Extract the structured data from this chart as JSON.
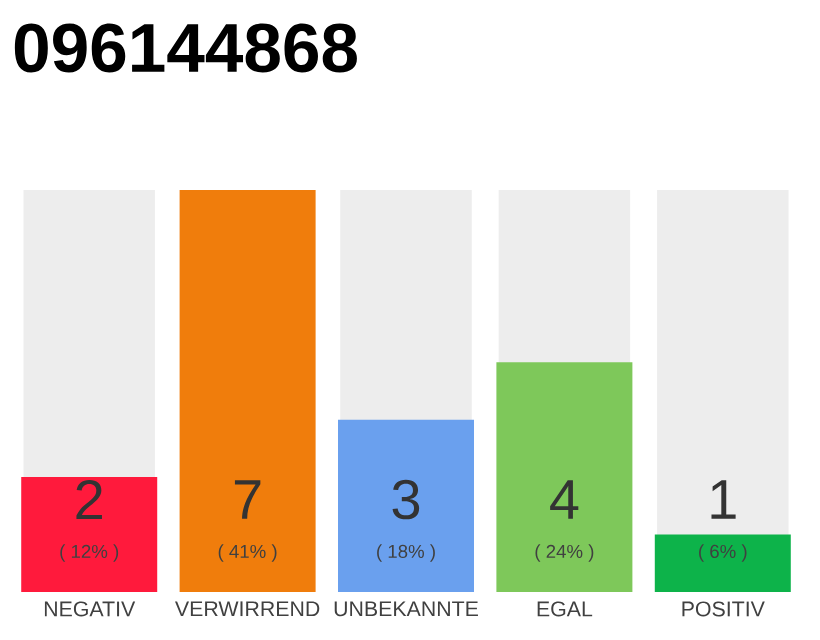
{
  "chart_data": {
    "type": "bar",
    "title": "096144868",
    "categories": [
      "NEGATIV",
      "VERWIRREND",
      "UNBEKANNTE",
      "EGAL",
      "POSITIV"
    ],
    "values": [
      2,
      7,
      3,
      4,
      1
    ],
    "colors": [
      "#ff1a3c",
      "#f07d0c",
      "#6aa0ee",
      "#7ec85a",
      "#0db34a"
    ],
    "value_labels": [
      "2",
      "7",
      "3",
      "4",
      "1"
    ],
    "annotations": [
      "( 12% )",
      "( 41% )",
      "( 18% )",
      "( 24% )",
      "( 6% )"
    ],
    "tick_labels": "x"
  }
}
